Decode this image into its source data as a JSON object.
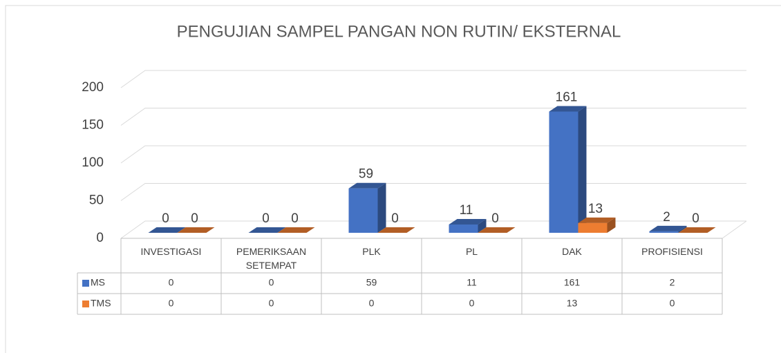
{
  "chart_data": {
    "type": "bar",
    "title": "PENGUJIAN SAMPEL PANGAN NON RUTIN/ EKSTERNAL",
    "categories": [
      "INVESTIGASI",
      "PEMERIKSAAN SETEMPAT",
      "PLK",
      "PL",
      "DAK",
      "PROFISIENSI"
    ],
    "series": [
      {
        "name": "MS",
        "color": "#4472c4",
        "values": [
          0,
          0,
          59,
          11,
          161,
          2
        ]
      },
      {
        "name": "TMS",
        "color": "#ed7d31",
        "values": [
          0,
          0,
          0,
          0,
          13,
          0
        ]
      }
    ],
    "ylim": [
      0,
      200
    ],
    "yticks": [
      0,
      50,
      100,
      150,
      200
    ],
    "grid": true
  }
}
